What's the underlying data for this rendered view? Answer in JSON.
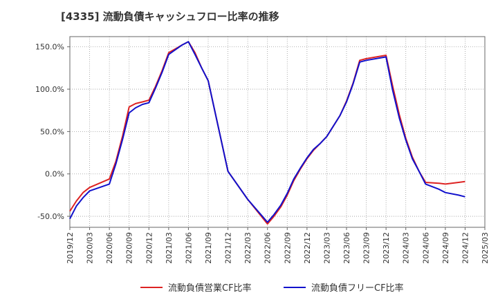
{
  "chart_data": {
    "type": "line",
    "title": "[4335]  流動負債キャッシュフロー比率の推移",
    "xlabel": "",
    "ylabel": "",
    "ylim": [
      -63,
      162
    ],
    "yticks": [
      150,
      100,
      50,
      0,
      -50
    ],
    "ytick_labels": [
      "150.0%",
      "100.0%",
      "50.0%",
      "0.0%",
      "-50.0%"
    ],
    "xticks": [
      "2019/12",
      "2020/03",
      "2020/06",
      "2020/09",
      "2020/12",
      "2021/03",
      "2021/06",
      "2021/09",
      "2021/12",
      "2022/03",
      "2022/06",
      "2022/09",
      "2022/12",
      "2023/03",
      "2023/06",
      "2023/09",
      "2023/12",
      "2024/03",
      "2024/06",
      "2024/09",
      "2024/12",
      "2025/03"
    ],
    "grid": true,
    "legend_position": "bottom",
    "series": [
      {
        "name": "流動負債営業CF比率",
        "color": "#dd2222",
        "x": [
          0,
          0.33,
          0.67,
          1,
          2,
          2.33,
          2.67,
          3,
          3.33,
          3.67,
          4,
          4.33,
          4.67,
          5,
          5.67,
          6,
          6.33,
          6.67,
          7,
          8,
          9,
          10,
          10.33,
          10.67,
          11,
          11.33,
          11.67,
          12,
          12.33,
          12.67,
          13,
          13.67,
          14,
          14.33,
          14.67,
          15,
          16,
          16.33,
          16.67,
          17,
          17.33,
          17.67,
          18,
          18.67,
          19,
          19.67,
          20
        ],
        "values": [
          -44,
          -32,
          -22,
          -16,
          -6,
          15,
          45,
          79,
          83,
          85,
          87,
          103,
          122,
          143,
          152,
          156,
          143,
          125,
          110,
          3,
          -30,
          -59,
          -50,
          -39,
          -25,
          -8,
          6,
          18,
          28,
          36,
          44,
          69,
          86,
          107,
          134,
          136,
          140,
          104,
          70,
          42,
          20,
          3,
          -10,
          -11,
          -12,
          -10,
          -9
        ]
      },
      {
        "name": "流動負債フリーCF比率",
        "color": "#1111cc",
        "x": [
          0,
          0.33,
          0.67,
          1,
          2,
          2.33,
          2.67,
          3,
          3.33,
          3.67,
          4,
          4.33,
          4.67,
          5,
          5.67,
          6,
          6.33,
          6.67,
          7,
          8,
          9,
          10,
          10.33,
          10.67,
          11,
          11.33,
          11.67,
          12,
          12.33,
          12.67,
          13,
          13.67,
          14,
          14.33,
          14.67,
          15,
          16,
          16.33,
          16.67,
          17,
          17.33,
          17.67,
          18,
          18.67,
          19,
          19.67,
          20
        ],
        "values": [
          -53,
          -38,
          -28,
          -20,
          -12,
          12,
          41,
          72,
          78,
          82,
          84,
          101,
          120,
          141,
          152,
          156,
          141,
          125,
          110,
          3,
          -30,
          -57,
          -48,
          -37,
          -23,
          -6,
          7,
          19,
          29,
          36,
          44,
          69,
          85,
          106,
          132,
          134,
          138,
          99,
          66,
          40,
          18,
          3,
          -12,
          -18,
          -22,
          -25,
          -27
        ]
      }
    ]
  }
}
